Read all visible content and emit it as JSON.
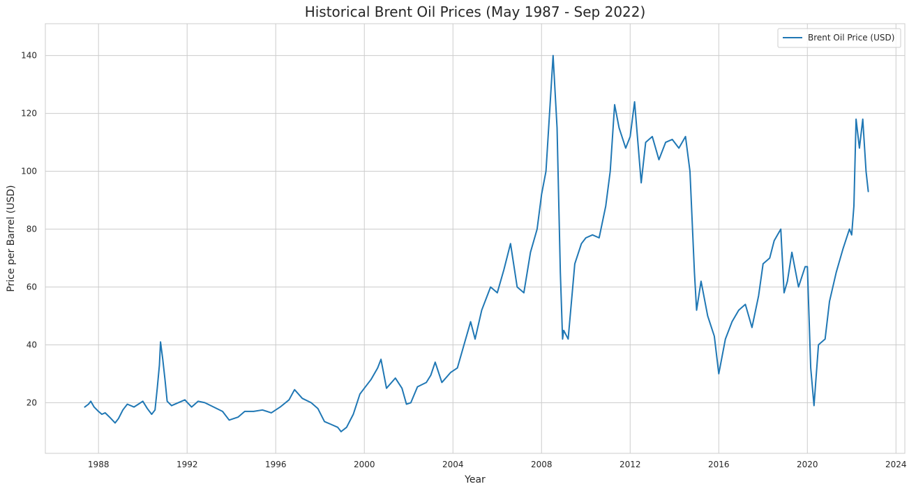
{
  "chart_data": {
    "type": "line",
    "title": "Historical Brent Oil Prices (May 1987 - Sep 2022)",
    "xlabel": "Year",
    "ylabel": "Price per Barrel (USD)",
    "xlim": [
      1985.6,
      2024.4
    ],
    "ylim": [
      2.5,
      151
    ],
    "x_ticks": [
      1988,
      1992,
      1996,
      2000,
      2004,
      2008,
      2012,
      2016,
      2020,
      2024
    ],
    "y_ticks": [
      20,
      40,
      60,
      80,
      100,
      120,
      140
    ],
    "grid": true,
    "legend_position": "top-right",
    "series": [
      {
        "name": "Brent Oil Price (USD)",
        "color": "#1f77b4",
        "x": [
          1987.38,
          1987.55,
          1987.65,
          1987.8,
          1988.0,
          1988.15,
          1988.3,
          1988.5,
          1988.75,
          1988.9,
          1989.1,
          1989.3,
          1989.6,
          1989.8,
          1990.0,
          1990.2,
          1990.4,
          1990.55,
          1990.65,
          1990.75,
          1990.8,
          1990.9,
          1991.0,
          1991.1,
          1991.3,
          1991.6,
          1991.9,
          1992.2,
          1992.5,
          1992.8,
          1993.2,
          1993.6,
          1993.9,
          1994.3,
          1994.6,
          1995.0,
          1995.4,
          1995.8,
          1996.2,
          1996.6,
          1996.85,
          1997.2,
          1997.6,
          1997.9,
          1998.2,
          1998.5,
          1998.8,
          1998.95,
          1999.2,
          1999.5,
          1999.8,
          2000.0,
          2000.3,
          2000.6,
          2000.75,
          2001.0,
          2001.4,
          2001.7,
          2001.9,
          2002.1,
          2002.4,
          2002.8,
          2003.0,
          2003.2,
          2003.5,
          2003.9,
          2004.2,
          2004.5,
          2004.8,
          2005.0,
          2005.3,
          2005.7,
          2006.0,
          2006.3,
          2006.6,
          2006.9,
          2007.2,
          2007.5,
          2007.8,
          2008.0,
          2008.2,
          2008.4,
          2008.52,
          2008.7,
          2008.85,
          2008.95,
          2009.0,
          2009.2,
          2009.5,
          2009.8,
          2010.0,
          2010.3,
          2010.6,
          2010.9,
          2011.1,
          2011.3,
          2011.5,
          2011.8,
          2012.0,
          2012.2,
          2012.5,
          2012.7,
          2013.0,
          2013.3,
          2013.6,
          2013.9,
          2014.2,
          2014.5,
          2014.7,
          2014.9,
          2015.0,
          2015.2,
          2015.5,
          2015.8,
          2016.0,
          2016.3,
          2016.6,
          2016.9,
          2017.2,
          2017.5,
          2017.8,
          2018.0,
          2018.3,
          2018.5,
          2018.8,
          2018.95,
          2019.1,
          2019.3,
          2019.6,
          2019.9,
          2020.0,
          2020.15,
          2020.3,
          2020.5,
          2020.8,
          2021.0,
          2021.3,
          2021.6,
          2021.9,
          2022.0,
          2022.1,
          2022.2,
          2022.35,
          2022.5,
          2022.65,
          2022.75
        ],
        "values": [
          18.5,
          19.5,
          20.5,
          18.5,
          17.0,
          16.0,
          16.5,
          15.0,
          13.0,
          14.5,
          17.5,
          19.5,
          18.5,
          19.5,
          20.5,
          18.0,
          16.0,
          17.5,
          25.0,
          33.0,
          41.0,
          35.0,
          28.0,
          20.5,
          19.0,
          20.0,
          21.0,
          18.5,
          20.5,
          20.0,
          18.5,
          17.0,
          14.0,
          15.0,
          17.0,
          17.0,
          17.5,
          16.5,
          18.5,
          21.0,
          24.5,
          21.5,
          20.0,
          18.0,
          13.5,
          12.5,
          11.5,
          10.0,
          11.5,
          16.0,
          23.0,
          25.0,
          28.0,
          32.0,
          35.0,
          25.0,
          28.5,
          25.0,
          19.5,
          20.0,
          25.5,
          27.0,
          29.5,
          34.0,
          27.0,
          30.5,
          32.0,
          40.0,
          48.0,
          42.0,
          52.0,
          60.0,
          58.0,
          66.0,
          75.0,
          60.0,
          58.0,
          72.0,
          80.0,
          92.0,
          100.0,
          125.0,
          140.0,
          115.0,
          65.0,
          42.0,
          45.0,
          42.0,
          68.0,
          75.0,
          77.0,
          78.0,
          77.0,
          88.0,
          100.0,
          123.0,
          115.0,
          108.0,
          112.0,
          124.0,
          96.0,
          110.0,
          112.0,
          104.0,
          110.0,
          111.0,
          108.0,
          112.0,
          100.0,
          65.0,
          52.0,
          62.0,
          50.0,
          43.0,
          30.0,
          42.0,
          48.0,
          52.0,
          54.0,
          46.0,
          57.0,
          68.0,
          70.0,
          76.0,
          80.0,
          58.0,
          62.0,
          72.0,
          60.0,
          67.0,
          67.0,
          32.0,
          19.0,
          40.0,
          42.0,
          55.0,
          65.0,
          73.0,
          80.0,
          78.0,
          88.0,
          118.0,
          108.0,
          118.0,
          100.0,
          93.0
        ]
      }
    ]
  }
}
